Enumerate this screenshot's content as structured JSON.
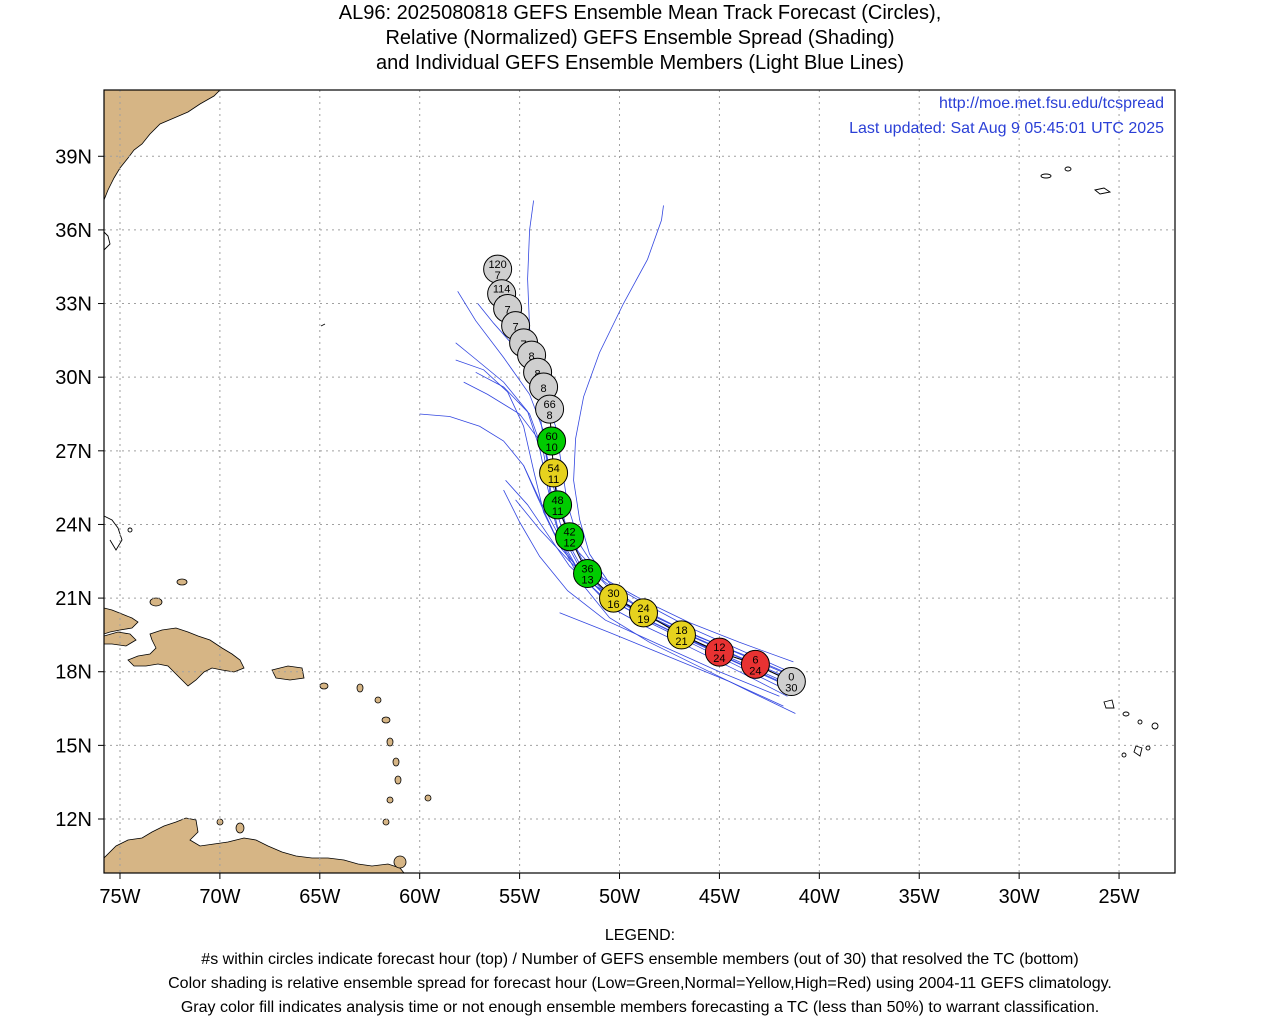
{
  "title": {
    "line1": "AL96: 2025080818 GEFS Ensemble Mean Track Forecast (Circles),",
    "line2": "Relative (Normalized) GEFS Ensemble Spread (Shading)",
    "line3": "and Individual GEFS Ensemble Members (Light Blue Lines)"
  },
  "header_links": {
    "url": "http://moe.met.fsu.edu/tcspread",
    "updated": "Last updated: Sat Aug 9 05:45:01 UTC 2025"
  },
  "axes": {
    "lon_labels": [
      "75W",
      "70W",
      "65W",
      "60W",
      "55W",
      "50W",
      "45W",
      "40W",
      "35W",
      "30W",
      "25W"
    ],
    "lon_values": [
      -75,
      -70,
      -65,
      -60,
      -55,
      -50,
      -45,
      -40,
      -35,
      -30,
      -25
    ],
    "lat_labels": [
      "39N",
      "36N",
      "33N",
      "30N",
      "27N",
      "24N",
      "21N",
      "18N",
      "15N",
      "12N"
    ],
    "lat_values": [
      39,
      36,
      33,
      30,
      27,
      24,
      21,
      18,
      15,
      12
    ],
    "lon_range": [
      -75.8,
      -22.2
    ],
    "lat_range": [
      9.8,
      41.7
    ]
  },
  "colors": {
    "land": "#d6b585",
    "member_tracks": "#3347e0",
    "low_spread": "#00cc00",
    "normal_spread": "#e6d21e",
    "high_spread": "#e83232",
    "not_classified": "#cfcfcf",
    "grid": "#a0a0a0"
  },
  "chart_data": {
    "type": "track_map",
    "mean_track": [
      {
        "hour": "0",
        "members": "30",
        "lon": -41.4,
        "lat": 17.6,
        "spread": "gray"
      },
      {
        "hour": "6",
        "members": "24",
        "lon": -43.2,
        "lat": 18.3,
        "spread": "high"
      },
      {
        "hour": "12",
        "members": "24",
        "lon": -45.0,
        "lat": 18.8,
        "spread": "high"
      },
      {
        "hour": "18",
        "members": "21",
        "lon": -46.9,
        "lat": 19.5,
        "spread": "normal"
      },
      {
        "hour": "24",
        "members": "19",
        "lon": -48.8,
        "lat": 20.4,
        "spread": "normal"
      },
      {
        "hour": "30",
        "members": "16",
        "lon": -50.3,
        "lat": 21.0,
        "spread": "normal"
      },
      {
        "hour": "36",
        "members": "13",
        "lon": -51.6,
        "lat": 22.0,
        "spread": "low"
      },
      {
        "hour": "42",
        "members": "12",
        "lon": -52.5,
        "lat": 23.5,
        "spread": "low"
      },
      {
        "hour": "48",
        "members": "11",
        "lon": -53.1,
        "lat": 24.8,
        "spread": "low"
      },
      {
        "hour": "54",
        "members": "11",
        "lon": -53.3,
        "lat": 26.1,
        "spread": "normal"
      },
      {
        "hour": "60",
        "members": "10",
        "lon": -53.4,
        "lat": 27.4,
        "spread": "low"
      },
      {
        "hour": "66",
        "members": "8",
        "lon": -53.5,
        "lat": 28.7,
        "spread": "gray"
      },
      {
        "hour": "",
        "members": "8",
        "lon": -53.8,
        "lat": 29.6,
        "spread": "gray"
      },
      {
        "hour": "",
        "members": "8",
        "lon": -54.1,
        "lat": 30.2,
        "spread": "gray"
      },
      {
        "hour": "",
        "members": "8",
        "lon": -54.4,
        "lat": 30.9,
        "spread": "gray"
      },
      {
        "hour": "",
        "members": "7",
        "lon": -54.8,
        "lat": 31.4,
        "spread": "gray"
      },
      {
        "hour": "",
        "members": "7",
        "lon": -55.2,
        "lat": 32.1,
        "spread": "gray"
      },
      {
        "hour": "",
        "members": "7",
        "lon": -55.6,
        "lat": 32.8,
        "spread": "gray"
      },
      {
        "hour": "114",
        "members": "7",
        "lon": -55.9,
        "lat": 33.4,
        "spread": "gray"
      },
      {
        "hour": "120",
        "members": "7",
        "lon": -56.1,
        "lat": 34.4,
        "spread": "gray"
      }
    ],
    "member_tracks": [
      [
        [
          -41.2,
          16.3
        ],
        [
          -43.5,
          17.2
        ],
        [
          -46,
          18.2
        ],
        [
          -48.5,
          19.2
        ],
        [
          -50.5,
          20.2
        ],
        [
          -51.8,
          21.5
        ],
        [
          -52.8,
          23
        ],
        [
          -53.4,
          24.6
        ],
        [
          -53.6,
          26.2
        ],
        [
          -53.8,
          27.8
        ],
        [
          -54.5,
          29.3
        ],
        [
          -55.8,
          30.8
        ],
        [
          -57.2,
          32.3
        ],
        [
          -58.1,
          33.5
        ]
      ],
      [
        [
          -41.5,
          18
        ],
        [
          -44,
          18.9
        ],
        [
          -46.5,
          19.8
        ],
        [
          -48.8,
          20.8
        ],
        [
          -50.5,
          21.6
        ],
        [
          -51.5,
          22.8
        ],
        [
          -52,
          24.2
        ],
        [
          -52.3,
          25.8
        ],
        [
          -52.2,
          27.5
        ],
        [
          -51.8,
          29.2
        ],
        [
          -51,
          31
        ],
        [
          -49.8,
          33
        ],
        [
          -48.6,
          34.8
        ],
        [
          -47.9,
          36.4
        ],
        [
          -47.8,
          37
        ]
      ],
      [
        [
          -41.3,
          18.4
        ],
        [
          -44,
          19.2
        ],
        [
          -46.5,
          20
        ],
        [
          -48.8,
          20.9
        ],
        [
          -50.8,
          21.8
        ],
        [
          -52.2,
          23
        ],
        [
          -53,
          24.5
        ],
        [
          -53.5,
          26.2
        ],
        [
          -53.9,
          28
        ],
        [
          -54.2,
          30
        ],
        [
          -54.5,
          32
        ],
        [
          -54.6,
          34
        ],
        [
          -54.5,
          36
        ],
        [
          -54.3,
          37.2
        ]
      ],
      [
        [
          -41.6,
          17
        ],
        [
          -44,
          18
        ],
        [
          -46.5,
          19
        ],
        [
          -48.6,
          19.8
        ],
        [
          -50.4,
          20.6
        ],
        [
          -51.9,
          21.9
        ],
        [
          -53,
          23.5
        ],
        [
          -54,
          25
        ],
        [
          -54.8,
          26.4
        ],
        [
          -55.8,
          27.4
        ],
        [
          -57,
          28
        ],
        [
          -58.5,
          28.4
        ],
        [
          -60,
          28.5
        ]
      ],
      [
        [
          -41.8,
          17.5
        ],
        [
          -44.5,
          18.5
        ],
        [
          -47,
          19.6
        ],
        [
          -49.4,
          20.6
        ],
        [
          -51.4,
          21.6
        ],
        [
          -52.9,
          23
        ],
        [
          -53.8,
          24.5
        ],
        [
          -54.3,
          26.2
        ],
        [
          -54.8,
          28
        ],
        [
          -55.6,
          29.4
        ],
        [
          -56.8,
          30.3
        ],
        [
          -58.2,
          30.7
        ]
      ],
      [
        [
          -41.5,
          17.2
        ],
        [
          -44,
          18.2
        ],
        [
          -46.5,
          19.2
        ],
        [
          -48.5,
          20
        ],
        [
          -50.3,
          20.9
        ],
        [
          -51.8,
          22.1
        ],
        [
          -52.8,
          23.6
        ],
        [
          -53.4,
          25.2
        ],
        [
          -53.8,
          26.9
        ],
        [
          -54.5,
          28.5
        ],
        [
          -55.8,
          29.6
        ],
        [
          -57.2,
          30.2
        ]
      ],
      [
        [
          -42,
          17
        ],
        [
          -45,
          18
        ],
        [
          -48,
          19.1
        ],
        [
          -50.7,
          20.1
        ],
        [
          -52.6,
          21.3
        ],
        [
          -54,
          22.7
        ],
        [
          -55,
          24.1
        ],
        [
          -55.8,
          25.4
        ]
      ],
      [
        [
          -41.2,
          17.8
        ],
        [
          -43.5,
          18.6
        ],
        [
          -46,
          19.4
        ],
        [
          -48.4,
          20.3
        ],
        [
          -50.4,
          21.3
        ],
        [
          -51.9,
          22.6
        ],
        [
          -52.7,
          24
        ],
        [
          -53.2,
          25.6
        ],
        [
          -53.8,
          27.2
        ],
        [
          -55,
          28.5
        ],
        [
          -56.6,
          29.3
        ],
        [
          -57.8,
          29.8
        ]
      ],
      [
        [
          -41.4,
          17.7
        ],
        [
          -44,
          18.6
        ],
        [
          -46.5,
          19.5
        ],
        [
          -48.8,
          20.3
        ],
        [
          -50.8,
          21.2
        ],
        [
          -52.5,
          22.5
        ],
        [
          -54,
          23.8
        ],
        [
          -55.2,
          25
        ]
      ],
      [
        [
          -41.8,
          16.6
        ],
        [
          -44.5,
          17.6
        ],
        [
          -47.5,
          18.6
        ],
        [
          -50.5,
          19.6
        ],
        [
          -53,
          20.4
        ]
      ],
      [
        [
          -41.3,
          17.6
        ],
        [
          -43.8,
          18.5
        ],
        [
          -46.3,
          19.4
        ],
        [
          -48.6,
          20.3
        ],
        [
          -50.6,
          21.2
        ],
        [
          -52.1,
          22.4
        ],
        [
          -53.1,
          23.9
        ],
        [
          -53.6,
          25.5
        ],
        [
          -54,
          27.1
        ],
        [
          -54.6,
          28.6
        ],
        [
          -55.8,
          29.8
        ],
        [
          -57.3,
          30.8
        ],
        [
          -58.2,
          31.4
        ]
      ],
      [
        [
          -41.6,
          17.9
        ],
        [
          -44.2,
          18.8
        ],
        [
          -46.8,
          19.7
        ],
        [
          -49,
          20.6
        ],
        [
          -50.8,
          21.7
        ],
        [
          -52,
          23.2
        ],
        [
          -52.6,
          24.8
        ],
        [
          -52.9,
          26.4
        ],
        [
          -53.2,
          28
        ],
        [
          -53.9,
          29.6
        ],
        [
          -55,
          31
        ],
        [
          -56.3,
          32.2
        ],
        [
          -57.1,
          33
        ]
      ],
      [
        [
          -41.4,
          17.4
        ],
        [
          -43.9,
          18.3
        ],
        [
          -46.3,
          19.2
        ],
        [
          -48.6,
          20.1
        ],
        [
          -50.6,
          21
        ],
        [
          -52.2,
          22.3
        ],
        [
          -53.3,
          23.7
        ],
        [
          -54.1,
          25.1
        ],
        [
          -54.8,
          26.4
        ]
      ],
      [
        [
          -41.5,
          17.5
        ],
        [
          -44,
          18.4
        ],
        [
          -46.5,
          19.3
        ],
        [
          -48.8,
          20.2
        ],
        [
          -50.9,
          21.1
        ],
        [
          -52.5,
          22.3
        ],
        [
          -53.6,
          23.6
        ],
        [
          -54.6,
          24.8
        ],
        [
          -55.7,
          25.8
        ]
      ]
    ]
  },
  "legend": {
    "heading": "LEGEND:",
    "line1": "#s within circles indicate forecast hour (top) / Number of GEFS ensemble members (out of 30) that resolved the TC (bottom)",
    "line2": "Color shading is relative ensemble spread for forecast hour (Low=Green,Normal=Yellow,High=Red) using 2004-11 GEFS climatology.",
    "line3": "Gray color fill indicates analysis time or not enough ensemble members forecasting a TC (less than 50%) to warrant classification."
  }
}
